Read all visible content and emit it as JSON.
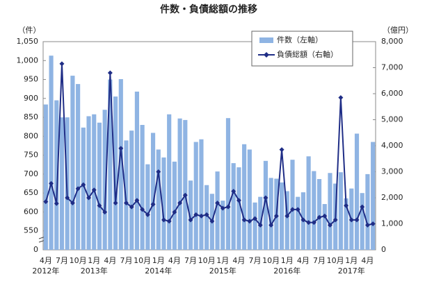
{
  "chart_data": {
    "type": "bar-line",
    "title": "件数・負債総額の推移",
    "y_axis_label": "（件）",
    "y2_axis_label": "（億円）",
    "y_break_label": "0",
    "categories": [
      "4月",
      null,
      null,
      "7月",
      null,
      null,
      "10月",
      null,
      null,
      "1月",
      null,
      null,
      "4月",
      null,
      null,
      "7月",
      null,
      null,
      "10月",
      null,
      null,
      "1月",
      null,
      null,
      "4月",
      null,
      null,
      "7月",
      null,
      null,
      "10月",
      null,
      null,
      "1月",
      null,
      null,
      "4月",
      null,
      null,
      "7月",
      null,
      null,
      "10月",
      null,
      null,
      "1月",
      null,
      null,
      "4月",
      null,
      null,
      "7月",
      null,
      null,
      "10月",
      null,
      null,
      "1月",
      null,
      null,
      "4月",
      null
    ],
    "year_labels": [
      "2012年",
      null,
      null,
      null,
      null,
      null,
      null,
      null,
      null,
      "2013年",
      null,
      null,
      null,
      null,
      null,
      null,
      null,
      null,
      null,
      null,
      null,
      "2014年",
      null,
      null,
      null,
      null,
      null,
      null,
      null,
      null,
      null,
      null,
      null,
      "2015年",
      null,
      null,
      null,
      null,
      null,
      null,
      null,
      null,
      null,
      null,
      null,
      "2016年",
      null,
      null,
      null,
      null,
      null,
      null,
      null,
      null,
      null,
      null,
      null,
      "2017年",
      null,
      null,
      null,
      null
    ],
    "series": [
      {
        "name": "件数（左軸）",
        "type": "bar",
        "color": "#8fb4e3",
        "values": [
          884,
          1013,
          895,
          850,
          850,
          960,
          938,
          823,
          853,
          858,
          836,
          870,
          950,
          905,
          951,
          789,
          815,
          918,
          830,
          726,
          809,
          765,
          744,
          858,
          733,
          847,
          843,
          683,
          785,
          792,
          671,
          648,
          707,
          630,
          848,
          729,
          718,
          779,
          765,
          625,
          640,
          735,
          690,
          688,
          678,
          655,
          738,
          640,
          652,
          747,
          708,
          687,
          621,
          703,
          675,
          705,
          636,
          662,
          807,
          650,
          700,
          785
        ]
      },
      {
        "name": "負債総額（右軸）",
        "type": "line",
        "axis": "y2",
        "color": "#1f2d86",
        "values": [
          1850,
          2550,
          1780,
          7150,
          2000,
          1800,
          2350,
          2500,
          2000,
          2300,
          1700,
          1450,
          6800,
          1800,
          3900,
          1800,
          1650,
          1900,
          1550,
          1350,
          1750,
          3000,
          1150,
          1100,
          1450,
          1800,
          2100,
          1150,
          1350,
          1300,
          1350,
          1100,
          1800,
          1600,
          1650,
          2250,
          1900,
          1150,
          1100,
          1200,
          950,
          2000,
          950,
          1300,
          3850,
          1300,
          1550,
          1550,
          1150,
          1050,
          1050,
          1250,
          1300,
          950,
          1150,
          5850,
          1700,
          1150,
          1150,
          1650,
          950,
          1000
        ]
      }
    ],
    "ylim": [
      500,
      1050
    ],
    "yticks": [
      550,
      600,
      650,
      700,
      750,
      800,
      850,
      900,
      950,
      {
        "value": 1000,
        "label": "1,000"
      },
      {
        "value": 1050,
        "label": "1,050"
      }
    ],
    "y2lim": [
      0,
      8000
    ],
    "y2ticks": [
      0,
      {
        "value": 1000,
        "label": "1,000"
      },
      {
        "value": 2000,
        "label": "2,000"
      },
      {
        "value": 3000,
        "label": "3,000"
      },
      {
        "value": 4000,
        "label": "4,000"
      },
      {
        "value": 5000,
        "label": "5,000"
      },
      {
        "value": 6000,
        "label": "6,000"
      },
      {
        "value": 7000,
        "label": "7,000"
      },
      {
        "value": 8000,
        "label": "8,000"
      }
    ],
    "grid": false
  }
}
